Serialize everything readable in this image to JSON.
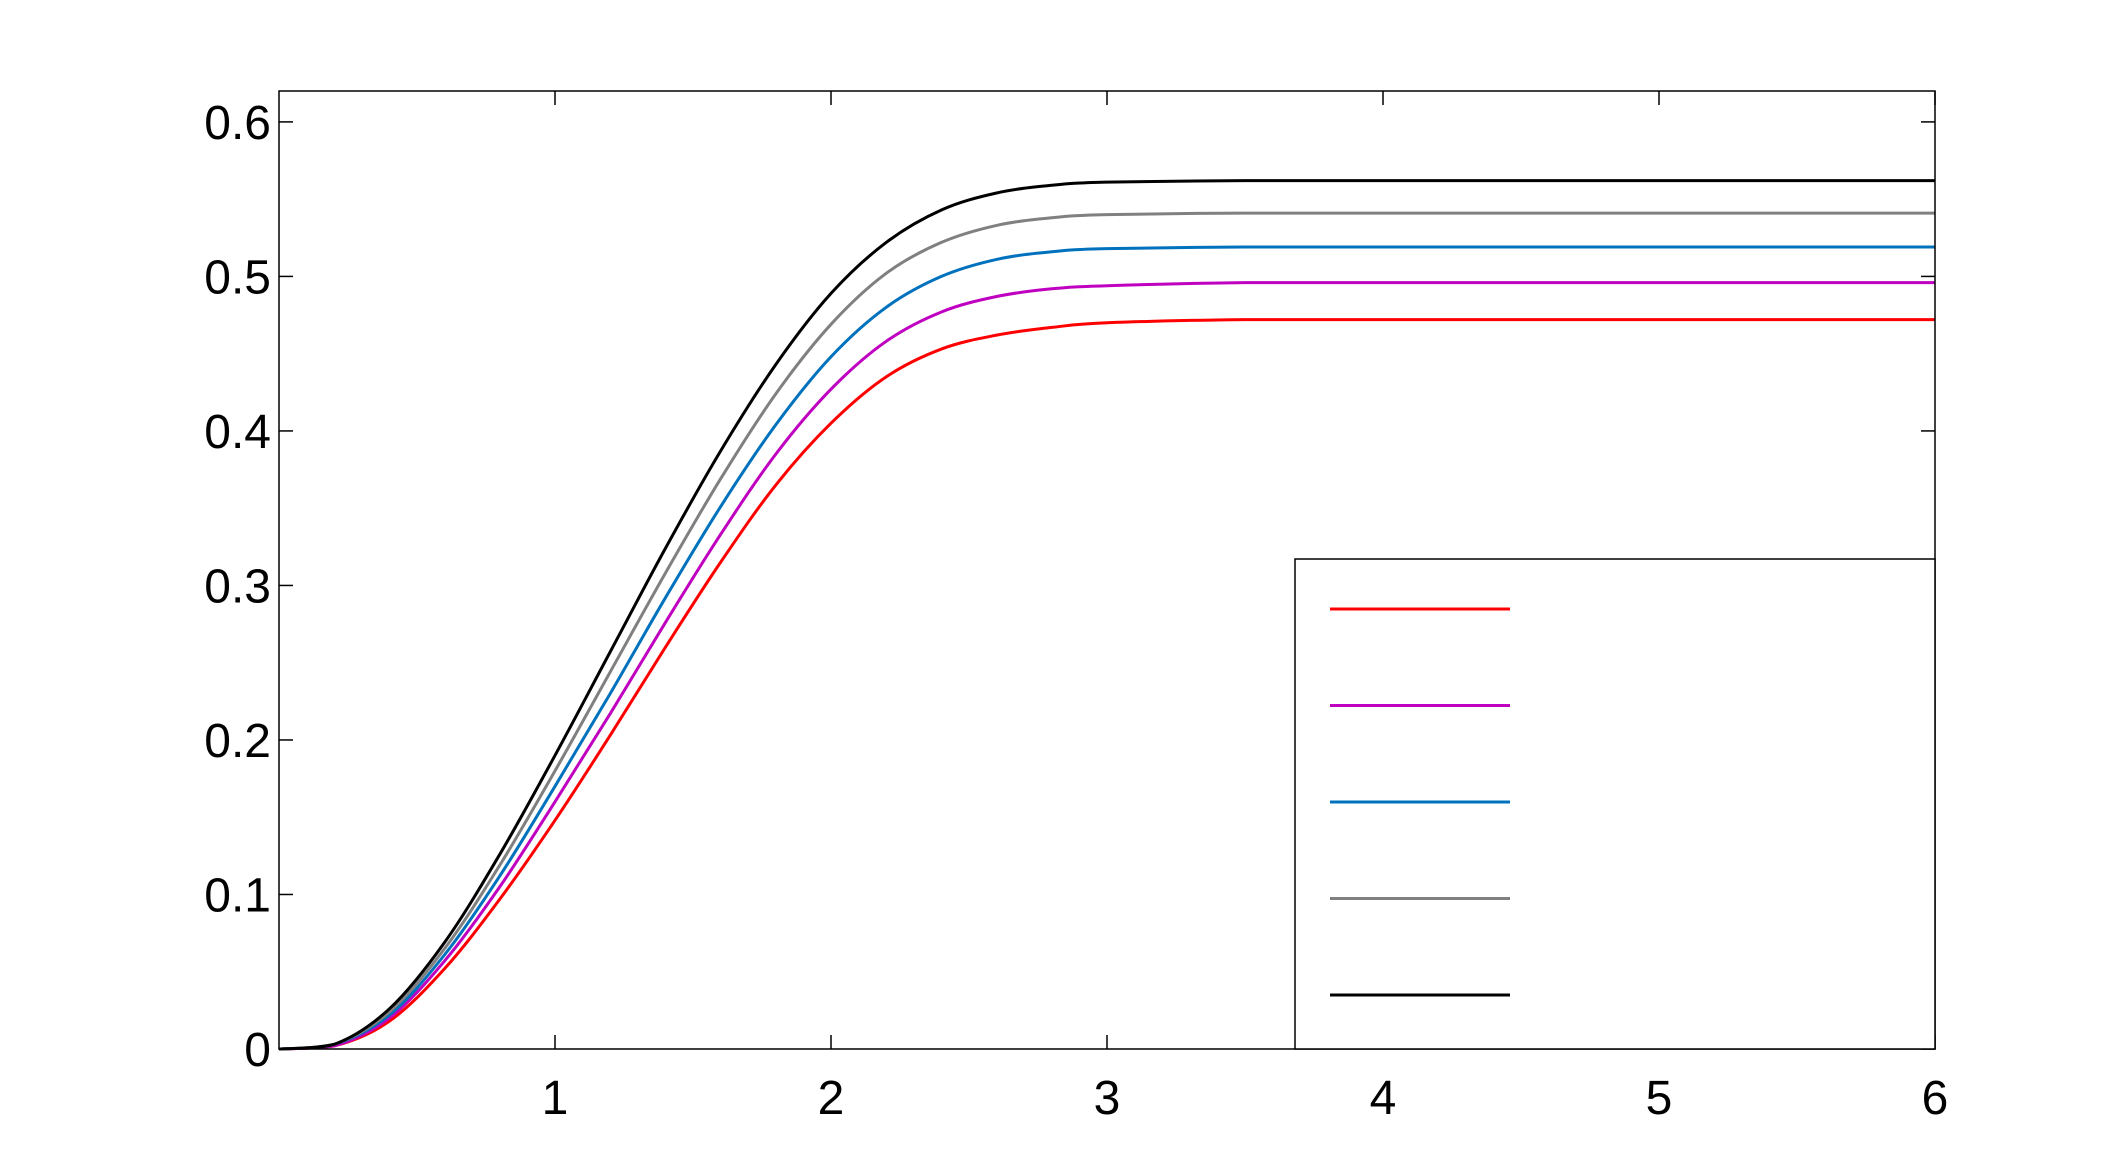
{
  "chart_data": {
    "type": "line",
    "title": "",
    "xlabel": "",
    "ylabel": "",
    "xlim": [
      0,
      6
    ],
    "ylim": [
      0,
      0.62
    ],
    "x_ticks": [
      1,
      2,
      3,
      4,
      5,
      6
    ],
    "x_tick_labels": [
      "1",
      "2",
      "3",
      "4",
      "5",
      "6"
    ],
    "y_ticks": [
      0,
      0.1,
      0.2,
      0.3,
      0.4,
      0.5,
      0.6
    ],
    "y_tick_labels": [
      "0",
      "0.1",
      "0.2",
      "0.3",
      "0.4",
      "0.5",
      "0.6"
    ],
    "grid": false,
    "box": true,
    "legend": {
      "position": "bottom-right",
      "labels_visible": false
    },
    "x": [
      0,
      0.2,
      0.4,
      0.6,
      0.8,
      1.0,
      1.2,
      1.4,
      1.6,
      1.8,
      2.0,
      2.2,
      2.4,
      2.6,
      2.8,
      3.0,
      3.5,
      4.0,
      5.0,
      6.0
    ],
    "series": [
      {
        "color": "#ff0000",
        "values": [
          0,
          0.002,
          0.018,
          0.052,
          0.097,
          0.148,
          0.203,
          0.26,
          0.315,
          0.365,
          0.405,
          0.435,
          0.453,
          0.462,
          0.467,
          0.47,
          0.472,
          0.472,
          0.472,
          0.472
        ]
      },
      {
        "color": "#c000c0",
        "values": [
          0,
          0.002,
          0.02,
          0.057,
          0.105,
          0.16,
          0.217,
          0.276,
          0.333,
          0.385,
          0.427,
          0.458,
          0.477,
          0.487,
          0.492,
          0.494,
          0.496,
          0.496,
          0.496,
          0.496
        ]
      },
      {
        "color": "#0072bd",
        "values": [
          0,
          0.003,
          0.022,
          0.061,
          0.112,
          0.17,
          0.23,
          0.292,
          0.351,
          0.404,
          0.448,
          0.48,
          0.5,
          0.511,
          0.516,
          0.518,
          0.519,
          0.519,
          0.519,
          0.519
        ]
      },
      {
        "color": "#808080",
        "values": [
          0,
          0.003,
          0.024,
          0.065,
          0.119,
          0.18,
          0.244,
          0.308,
          0.369,
          0.424,
          0.469,
          0.502,
          0.522,
          0.533,
          0.538,
          0.54,
          0.541,
          0.541,
          0.541,
          0.541
        ]
      },
      {
        "color": "#000000",
        "values": [
          0,
          0.003,
          0.026,
          0.069,
          0.126,
          0.19,
          0.257,
          0.324,
          0.387,
          0.443,
          0.489,
          0.522,
          0.543,
          0.554,
          0.559,
          0.561,
          0.562,
          0.562,
          0.562,
          0.562
        ]
      }
    ]
  }
}
